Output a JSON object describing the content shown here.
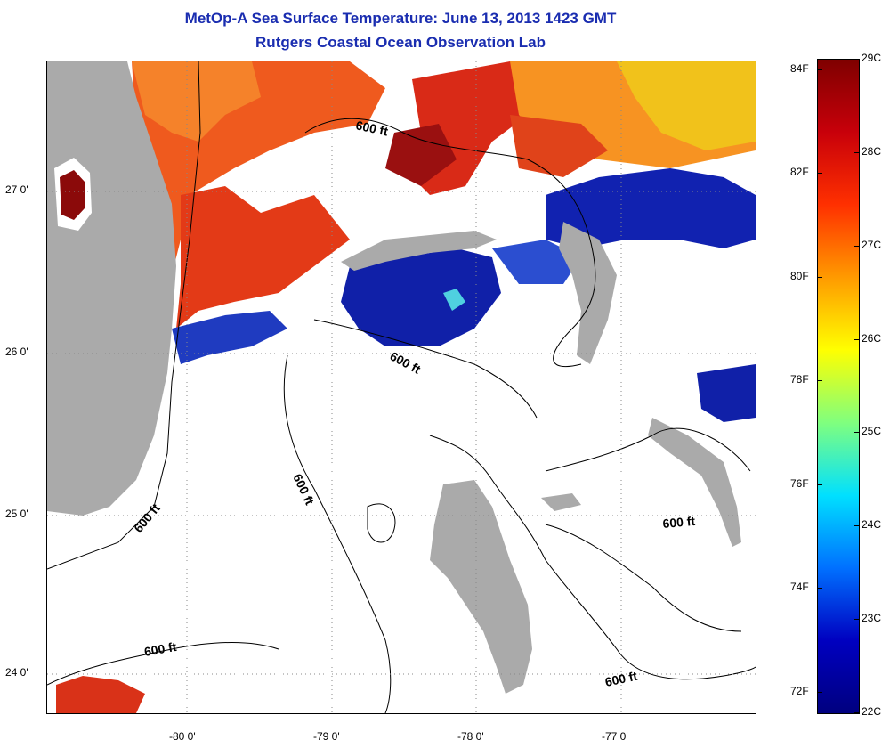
{
  "title": {
    "line1": "MetOp-A Sea Surface Temperature:  June 13, 2013 1423 GMT",
    "line2": "Rutgers Coastal Ocean Observation Lab"
  },
  "map": {
    "lon_range": [
      -80.9,
      -76.15
    ],
    "lat_range": [
      23.78,
      27.9
    ],
    "grid": true,
    "lon_ticks": [
      {
        "value": -80,
        "label": "-80 0'"
      },
      {
        "value": -79,
        "label": "-79 0'"
      },
      {
        "value": -78,
        "label": "-78 0'"
      },
      {
        "value": -77,
        "label": "-77 0'"
      }
    ],
    "lat_ticks": [
      {
        "value": 27,
        "label": "27 0'"
      },
      {
        "value": 26,
        "label": "26 0'"
      },
      {
        "value": 25,
        "label": "25 0'"
      },
      {
        "value": 24,
        "label": "24 0'"
      }
    ],
    "contour_labels": [
      "600 ft",
      "600 ft",
      "600 ft",
      "600 ft",
      "600 ft",
      "600 ft",
      "600 ft"
    ],
    "colors": {
      "land": "#aaaaaa",
      "no_data": "#ffffff",
      "warm": "#e8401a",
      "hot": "#9a0e0e",
      "orange": "#f7911e",
      "yellow": "#f3d21a",
      "cold": "#0f1fa8",
      "cool": "#3a63d8"
    }
  },
  "colorbar": {
    "celsius_ticks": [
      {
        "value": 29,
        "label": "29C"
      },
      {
        "value": 28,
        "label": "28C"
      },
      {
        "value": 27,
        "label": "27C"
      },
      {
        "value": 26,
        "label": "26C"
      },
      {
        "value": 25,
        "label": "25C"
      },
      {
        "value": 24,
        "label": "24C"
      },
      {
        "value": 23,
        "label": "23C"
      },
      {
        "value": 22,
        "label": "22C"
      }
    ],
    "fahrenheit_ticks": [
      {
        "value": 84,
        "label": "84F"
      },
      {
        "value": 82,
        "label": "82F"
      },
      {
        "value": 80,
        "label": "80F"
      },
      {
        "value": 78,
        "label": "78F"
      },
      {
        "value": 76,
        "label": "76F"
      },
      {
        "value": 74,
        "label": "74F"
      },
      {
        "value": 72,
        "label": "72F"
      }
    ],
    "colors": [
      "#7f0000",
      "#c8000a",
      "#ff3000",
      "#ff9a00",
      "#ffff00",
      "#7fff7f",
      "#00e0ff",
      "#0070ff",
      "#0000c0",
      "#00007f"
    ]
  }
}
